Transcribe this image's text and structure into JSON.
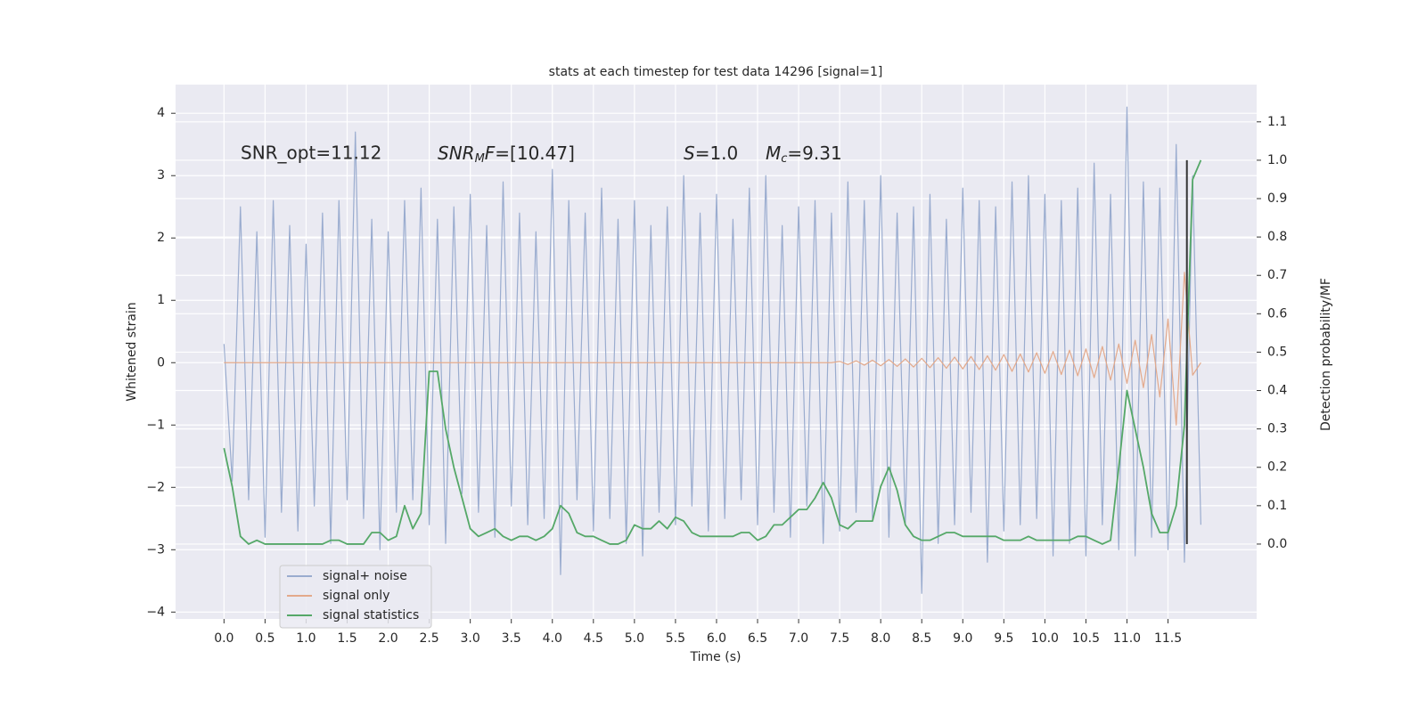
{
  "chart_data": {
    "type": "line",
    "title": "stats at each timestep for test data 14296 [signal=1]",
    "xlabel": "Time (s)",
    "ylabel": "Whitened strain",
    "y2label": "Detection probability/MF",
    "annotations": [
      {
        "text": "SNR_opt=11.12"
      },
      {
        "text": "SNR",
        "sub": "M",
        "text2": "F",
        "text3": "=[10.47]"
      },
      {
        "text": "S",
        "text2": "=1.0"
      },
      {
        "text": "M",
        "sub": "c",
        "text2": "=9.31"
      }
    ],
    "xlim": [
      -0.59,
      12.58
    ],
    "ylim": [
      -4.11,
      4.46
    ],
    "y2lim": [
      -0.195,
      1.197
    ],
    "xticks": [
      {
        "value": 0,
        "label": "0.0"
      },
      0.5,
      {
        "value": 1,
        "label": "1.0"
      },
      1.5,
      {
        "value": 2,
        "label": "2.0"
      },
      2.5,
      {
        "value": 3,
        "label": "3.0"
      },
      3.5,
      {
        "value": 4,
        "label": "4.0"
      },
      4.5,
      {
        "value": 5,
        "label": "5.0"
      },
      5.5,
      {
        "value": 6,
        "label": "6.0"
      },
      6.5,
      {
        "value": 7,
        "label": "7.0"
      },
      7.5,
      {
        "value": 8,
        "label": "8.0"
      },
      8.5,
      {
        "value": 9,
        "label": "9.0"
      },
      9.5,
      {
        "value": 10,
        "label": "10.0"
      },
      10.5,
      {
        "value": 11,
        "label": "11.0"
      },
      11.5
    ],
    "yticks": [
      {
        "value": -4,
        "label": "−4"
      },
      {
        "value": -3,
        "label": "−3"
      },
      {
        "value": -2,
        "label": "−2"
      },
      {
        "value": -1,
        "label": "−1"
      },
      0,
      1,
      2,
      3,
      4
    ],
    "y2ticks": [
      {
        "value": 0,
        "label": "0.0"
      },
      0.1,
      0.2,
      0.3,
      0.4,
      0.5,
      0.6,
      0.7,
      0.8,
      0.9,
      {
        "value": 1,
        "label": "1.0"
      },
      1.1
    ],
    "grid": true,
    "legend": "lower left",
    "x": [
      0,
      0.1,
      0.2,
      0.3,
      0.4,
      0.5,
      0.6,
      0.7,
      0.8,
      0.9,
      1,
      1.1,
      1.2,
      1.3,
      1.4,
      1.5,
      1.6,
      1.7,
      1.8,
      1.9,
      2,
      2.1,
      2.2,
      2.3,
      2.4,
      2.5,
      2.6,
      2.7,
      2.8,
      2.9,
      3,
      3.1,
      3.2,
      3.3,
      3.4,
      3.5,
      3.6,
      3.7,
      3.8,
      3.9,
      4,
      4.1,
      4.2,
      4.3,
      4.4,
      4.5,
      4.6,
      4.7,
      4.8,
      4.9,
      5,
      5.1,
      5.2,
      5.3,
      5.4,
      5.5,
      5.6,
      5.7,
      5.8,
      5.9,
      6,
      6.1,
      6.2,
      6.3,
      6.4,
      6.5,
      6.6,
      6.7,
      6.8,
      6.9,
      7,
      7.1,
      7.2,
      7.3,
      7.4,
      7.5,
      7.6,
      7.7,
      7.8,
      7.9,
      8,
      8.1,
      8.2,
      8.3,
      8.4,
      8.5,
      8.6,
      8.7,
      8.8,
      8.9,
      9,
      9.1,
      9.2,
      9.3,
      9.4,
      9.5,
      9.6,
      9.7,
      9.8,
      9.9,
      10,
      10.1,
      10.2,
      10.3,
      10.4,
      10.5,
      10.6,
      10.7,
      10.8,
      10.9,
      11,
      11.1,
      11.2,
      11.3,
      11.4,
      11.5,
      11.6,
      11.7,
      11.8,
      11.9
    ],
    "series": [
      {
        "name": "signal+ noise",
        "color": "#9aaccf",
        "axis": "y",
        "values": [
          0.3,
          -1.9,
          2.5,
          -2.2,
          2.1,
          -2.8,
          2.6,
          -2.4,
          2.2,
          -2.7,
          1.9,
          -2.3,
          2.4,
          -2.9,
          2.6,
          -2.2,
          3.7,
          -2.5,
          2.3,
          -3.0,
          2.1,
          -2.4,
          2.6,
          -2.2,
          2.8,
          -2.6,
          2.3,
          -2.9,
          2.5,
          -2.1,
          2.7,
          -2.4,
          2.2,
          -2.8,
          2.9,
          -2.3,
          2.4,
          -2.6,
          2.1,
          -2.5,
          3.1,
          -3.4,
          2.6,
          -2.2,
          2.4,
          -2.7,
          2.8,
          -2.5,
          2.3,
          -2.9,
          2.6,
          -3.1,
          2.2,
          -2.4,
          2.5,
          -2.6,
          3.0,
          -2.3,
          2.4,
          -2.7,
          2.7,
          -2.5,
          2.3,
          -2.2,
          2.8,
          -2.6,
          3.0,
          -2.4,
          2.2,
          -2.8,
          2.5,
          -2.3,
          2.6,
          -2.9,
          2.4,
          -2.7,
          2.9,
          -2.4,
          2.6,
          -2.5,
          3.0,
          -2.8,
          2.4,
          -2.6,
          2.5,
          -3.7,
          2.7,
          -2.9,
          2.3,
          -2.6,
          2.8,
          -2.4,
          2.6,
          -3.2,
          2.5,
          -2.7,
          2.9,
          -2.6,
          3.0,
          -2.5,
          2.7,
          -3.1,
          2.6,
          -2.9,
          2.8,
          -3.1,
          3.2,
          -2.6,
          2.7,
          -3.0,
          4.1,
          -3.1,
          2.9,
          -2.8,
          2.8,
          -3.0,
          3.5,
          -3.2,
          3.0,
          -2.6
        ]
      },
      {
        "name": "signal only",
        "color": "#e3a98b",
        "axis": "y",
        "values": [
          0,
          0,
          0,
          0,
          0,
          0,
          0,
          0,
          0,
          0,
          0,
          0,
          0,
          0,
          0,
          0,
          0,
          0,
          0,
          0,
          0,
          0,
          0,
          0,
          0,
          0,
          0,
          0,
          0,
          0,
          0,
          0,
          0,
          0,
          0,
          0,
          0,
          0,
          0,
          0,
          0,
          0,
          0,
          0,
          0,
          0,
          0,
          0,
          0,
          0,
          0,
          0,
          0,
          0,
          0,
          0,
          0,
          0,
          0,
          0,
          0,
          0,
          0,
          0,
          0,
          0,
          0,
          0,
          0,
          0,
          0,
          0,
          0,
          0,
          0,
          0.02,
          -0.03,
          0.03,
          -0.04,
          0.04,
          -0.05,
          0.05,
          -0.06,
          0.06,
          -0.07,
          0.07,
          -0.08,
          0.08,
          -0.09,
          0.09,
          -0.1,
          0.1,
          -0.11,
          0.11,
          -0.12,
          0.13,
          -0.14,
          0.14,
          -0.15,
          0.16,
          -0.17,
          0.18,
          -0.19,
          0.2,
          -0.21,
          0.22,
          -0.24,
          0.26,
          -0.28,
          0.3,
          -0.33,
          0.36,
          -0.4,
          0.45,
          -0.55,
          0.7,
          -1.0,
          1.45,
          -0.2,
          0
        ]
      },
      {
        "name": "signal statistics",
        "color": "#55a868",
        "axis": "y2",
        "values": [
          0.25,
          0.15,
          0.02,
          0,
          0.01,
          0,
          0,
          0,
          0,
          0,
          0,
          0,
          0,
          0.01,
          0.01,
          0,
          0,
          0,
          0.03,
          0.03,
          0.01,
          0.02,
          0.1,
          0.04,
          0.08,
          0.45,
          0.45,
          0.3,
          0.2,
          0.12,
          0.04,
          0.02,
          0.03,
          0.04,
          0.02,
          0.01,
          0.02,
          0.02,
          0.01,
          0.02,
          0.04,
          0.1,
          0.08,
          0.03,
          0.02,
          0.02,
          0.01,
          0,
          0,
          0.01,
          0.05,
          0.04,
          0.04,
          0.06,
          0.04,
          0.07,
          0.06,
          0.03,
          0.02,
          0.02,
          0.02,
          0.02,
          0.02,
          0.03,
          0.03,
          0.01,
          0.02,
          0.05,
          0.05,
          0.07,
          0.09,
          0.09,
          0.12,
          0.16,
          0.12,
          0.05,
          0.04,
          0.06,
          0.06,
          0.06,
          0.15,
          0.2,
          0.14,
          0.05,
          0.02,
          0.01,
          0.01,
          0.02,
          0.03,
          0.03,
          0.02,
          0.02,
          0.02,
          0.02,
          0.02,
          0.01,
          0.01,
          0.01,
          0.02,
          0.01,
          0.01,
          0.01,
          0.01,
          0.01,
          0.02,
          0.02,
          0.01,
          0,
          0.01,
          0.2,
          0.4,
          0.3,
          0.2,
          0.08,
          0.03,
          0.03,
          0.1,
          0.31,
          0.95,
          1.0
        ]
      }
    ],
    "vline": {
      "x": 11.73,
      "y2": [
        0,
        1
      ],
      "color": "#333333"
    }
  }
}
